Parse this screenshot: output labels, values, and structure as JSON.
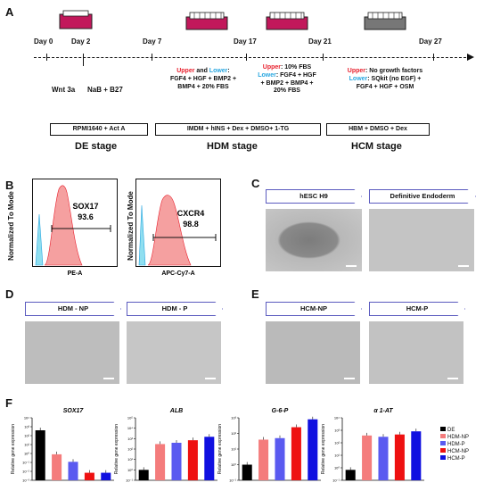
{
  "panel_a": {
    "label": "A",
    "days": [
      "Day 0",
      "Day 2",
      "Day 7",
      "Day 17",
      "Day 21",
      "Day 27"
    ],
    "notes": {
      "wnt": "Wnt 3a",
      "nab": "NaB + B27",
      "hdm_upper": "Upper",
      "hdm_and": " and ",
      "hdm_lower": "Lower",
      "hdm_line1": ": ",
      "hdm_line2": "FGF4 + HGF + BMP2 +",
      "hdm_line3": "BMP4 + 20% FBS",
      "d17_upper": "Upper",
      "d17_upper_txt": ": 10% FBS",
      "d17_lower": "Lower",
      "d17_lower_txt": ": FGF4 + HGF",
      "d17_line3": "+ BMP2 + BMP4 +",
      "d17_line4": "20% FBS",
      "d21_upper": "Upper",
      "d21_upper_txt": ": No growth factors",
      "d21_lower": "Lower",
      "d21_lower_txt": ": SQkit (no EGF) +",
      "d21_line3": "FGF4 + HGF + OSM"
    },
    "stages": [
      {
        "box": "RPMI1640 + Act A",
        "label": "DE stage"
      },
      {
        "box": "IMDM + hINS + Dex + DMSO+ 1-TG",
        "label": "HDM stage"
      },
      {
        "box": "HBM + DMSO + Dex",
        "label": "HCM stage"
      }
    ]
  },
  "panel_b": {
    "label": "B",
    "ylabel": "Normalized To Mode",
    "plots": [
      {
        "marker": "SOX17",
        "value": "93.6",
        "xlabel": "PE-A"
      },
      {
        "marker": "CXCR4",
        "value": "98.8",
        "xlabel": "APC-Cy7-A"
      }
    ]
  },
  "panel_c": {
    "label": "C",
    "images": [
      "hESC H9",
      "Definitive Endoderm"
    ]
  },
  "panel_d": {
    "label": "D",
    "images": [
      "HDM - NP",
      "HDM - P"
    ]
  },
  "panel_e": {
    "label": "E",
    "images": [
      "HCM-NP",
      "HCM-P"
    ]
  },
  "panel_f": {
    "label": "F",
    "legend": [
      {
        "name": "DE",
        "color": "#000000"
      },
      {
        "name": "HDM-NP",
        "color": "#f47c7c"
      },
      {
        "name": "HDM-P",
        "color": "#5a5af0"
      },
      {
        "name": "HCM-NP",
        "color": "#ee1111"
      },
      {
        "name": "HCM-P",
        "color": "#1010e0"
      }
    ]
  },
  "chart_data": [
    {
      "type": "bar",
      "title": "SOX17",
      "ylabel": "Relative gene expression",
      "categories": [
        "DE",
        "HDM-NP",
        "HDM-P",
        "HCM-NP",
        "HCM-P"
      ],
      "values": [
        1,
        0.012,
        0.003,
        0.0004,
        0.0004
      ],
      "ylim": [
        0.0001,
        10
      ],
      "yscale": "log",
      "yticks": [
        "10⁴",
        "10³",
        "10²",
        "10¹",
        "10⁰",
        "10⁻¹",
        "10⁻²",
        "10⁻³"
      ]
    },
    {
      "type": "bar",
      "title": "ALB",
      "ylabel": "Relative gene expression",
      "categories": [
        "DE",
        "HDM-NP",
        "HDM-P",
        "HCM-NP",
        "HCM-P"
      ],
      "values": [
        1,
        300,
        400,
        700,
        1500
      ],
      "ylim": [
        0.1,
        100000
      ],
      "yscale": "log",
      "yticks": [
        "10⁵",
        "10⁴",
        "10³",
        "10²",
        "10¹",
        "10⁰",
        "10⁻¹"
      ]
    },
    {
      "type": "bar",
      "title": "G-6-P",
      "ylabel": "Relative gene expression",
      "categories": [
        "DE",
        "HDM-NP",
        "HDM-P",
        "HCM-NP",
        "HCM-P"
      ],
      "values": [
        1,
        40,
        50,
        250,
        800
      ],
      "ylim": [
        0.1,
        1000
      ],
      "yscale": "log",
      "yticks": [
        "10³",
        "10²",
        "10¹",
        "10⁰",
        "10⁻¹"
      ]
    },
    {
      "type": "bar",
      "title": "α 1-AT",
      "ylabel": "Relative gene expression",
      "categories": [
        "DE",
        "HDM-NP",
        "HDM-P",
        "HCM-NP",
        "HCM-P"
      ],
      "values": [
        1,
        2000,
        1500,
        2500,
        5000
      ],
      "ylim": [
        0.1,
        100000
      ],
      "yscale": "log",
      "yticks": [
        "10⁴",
        "10³",
        "10²",
        "10¹",
        "10⁰",
        "10⁻¹"
      ]
    }
  ]
}
